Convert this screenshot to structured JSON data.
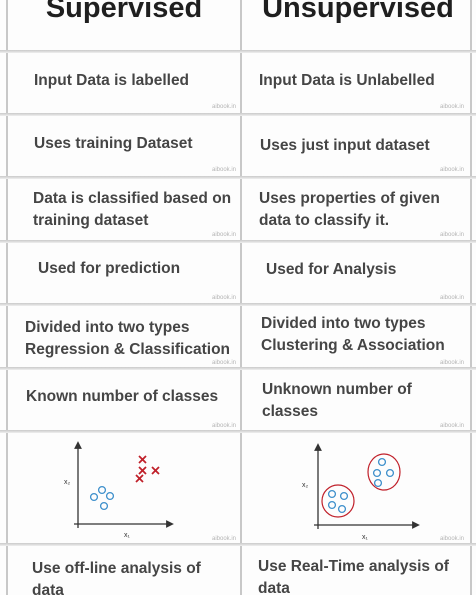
{
  "header": {
    "left": "Supervised",
    "right": "Unsupervised"
  },
  "rows": [
    {
      "left": "Input Data is labelled",
      "right": "Input Data is Unlabelled"
    },
    {
      "left": "Uses training Dataset",
      "right": "Uses just input dataset"
    },
    {
      "left": "Data is classified based on training dataset",
      "right": "Uses properties of given data to classify it."
    },
    {
      "left": "Used for prediction",
      "right": "Used for Analysis"
    },
    {
      "left": "Divided into two types Regression & Classification",
      "right": "Divided into two types Clustering & Association"
    },
    {
      "left": "Known number of classes",
      "right": "Unknown number of classes"
    },
    {
      "left": "Use off-line analysis of data",
      "right": "Use Real-Time analysis of data"
    }
  ],
  "axis_labels": {
    "x": "x₁",
    "y": "x₂"
  },
  "watermark": "aibook.in",
  "colors": {
    "cluster": "#3d8fcb",
    "cross": "#c0202a",
    "axis": "#333333"
  }
}
